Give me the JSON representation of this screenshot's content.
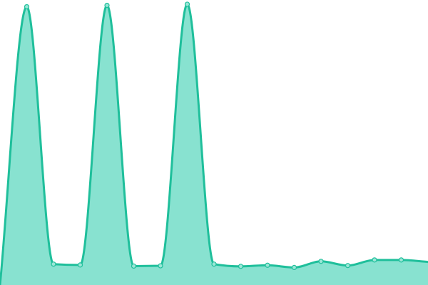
{
  "chart_data": {
    "type": "area",
    "title": "",
    "xlabel": "",
    "ylabel": "",
    "x": [
      0,
      1,
      2,
      3,
      4,
      5,
      6,
      7,
      8,
      9,
      10,
      11,
      12,
      13,
      14,
      15,
      16
    ],
    "values": [
      0,
      100,
      7.5,
      7.2,
      100.5,
      6.8,
      6.9,
      100.9,
      7.5,
      6.7,
      7.1,
      6.3,
      8.5,
      7.0,
      9.0,
      9.0,
      8.3
    ],
    "xlim": [
      0,
      16
    ],
    "ylim": [
      0,
      101.4
    ],
    "grid": false,
    "legend": "none",
    "colors": {
      "line": "#1fbf9b",
      "fill": "#88e2d0",
      "point_fill": "#9be7d7",
      "point_stroke": "#1fbf9b"
    }
  }
}
